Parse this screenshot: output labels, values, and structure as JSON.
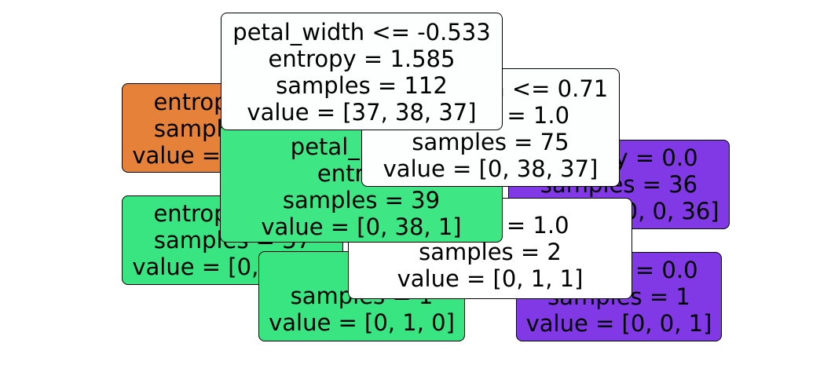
{
  "tree": {
    "nodes": [
      {
        "id": "n1",
        "lines": [
          "entropy = 0.0",
          "samples = 37",
          "value = [37, 0, 0]"
        ],
        "color": "#e58139"
      },
      {
        "id": "n5",
        "lines": [
          "entropy = 0.0",
          "samples = 37",
          "value = [0, 37, 0]"
        ],
        "color": "#39e581"
      },
      {
        "id": "n4",
        "lines": [
          "",
          "samples = 1",
          "value = [0, 1, 0]"
        ],
        "color": "#39e581"
      },
      {
        "id": "n6",
        "lines": [
          "entropy = 0.0",
          "samples = 1",
          "value = [0, 0, 1]"
        ],
        "color": "#8139e5"
      },
      {
        "id": "n7",
        "lines": [
          "entropy = 0.0",
          "samples = 36",
          "value = [0, 0, 36]"
        ],
        "color": "#8139e5"
      },
      {
        "id": "n3",
        "lines": [
          "",
          "entropy = 1.0",
          "samples = 2",
          "value = [0, 1, 1]"
        ],
        "color": "#ffffff"
      },
      {
        "id": "n2",
        "lines": [
          "petal_length",
          "entropy",
          "samples = 39",
          "value = [0, 38, 1]"
        ],
        "color": "#3ee684"
      },
      {
        "id": "nR",
        "lines": [
          "petal_width <= 0.71",
          "entropy = 1.0",
          "samples = 75",
          "value = [0, 38, 37]"
        ],
        "color": "#fcfffe"
      },
      {
        "id": "n0",
        "lines": [
          "petal_width <= -0.533",
          "entropy = 1.585",
          "samples = 112",
          "value = [37, 38, 37]"
        ],
        "color": "#fdfffe"
      }
    ]
  }
}
